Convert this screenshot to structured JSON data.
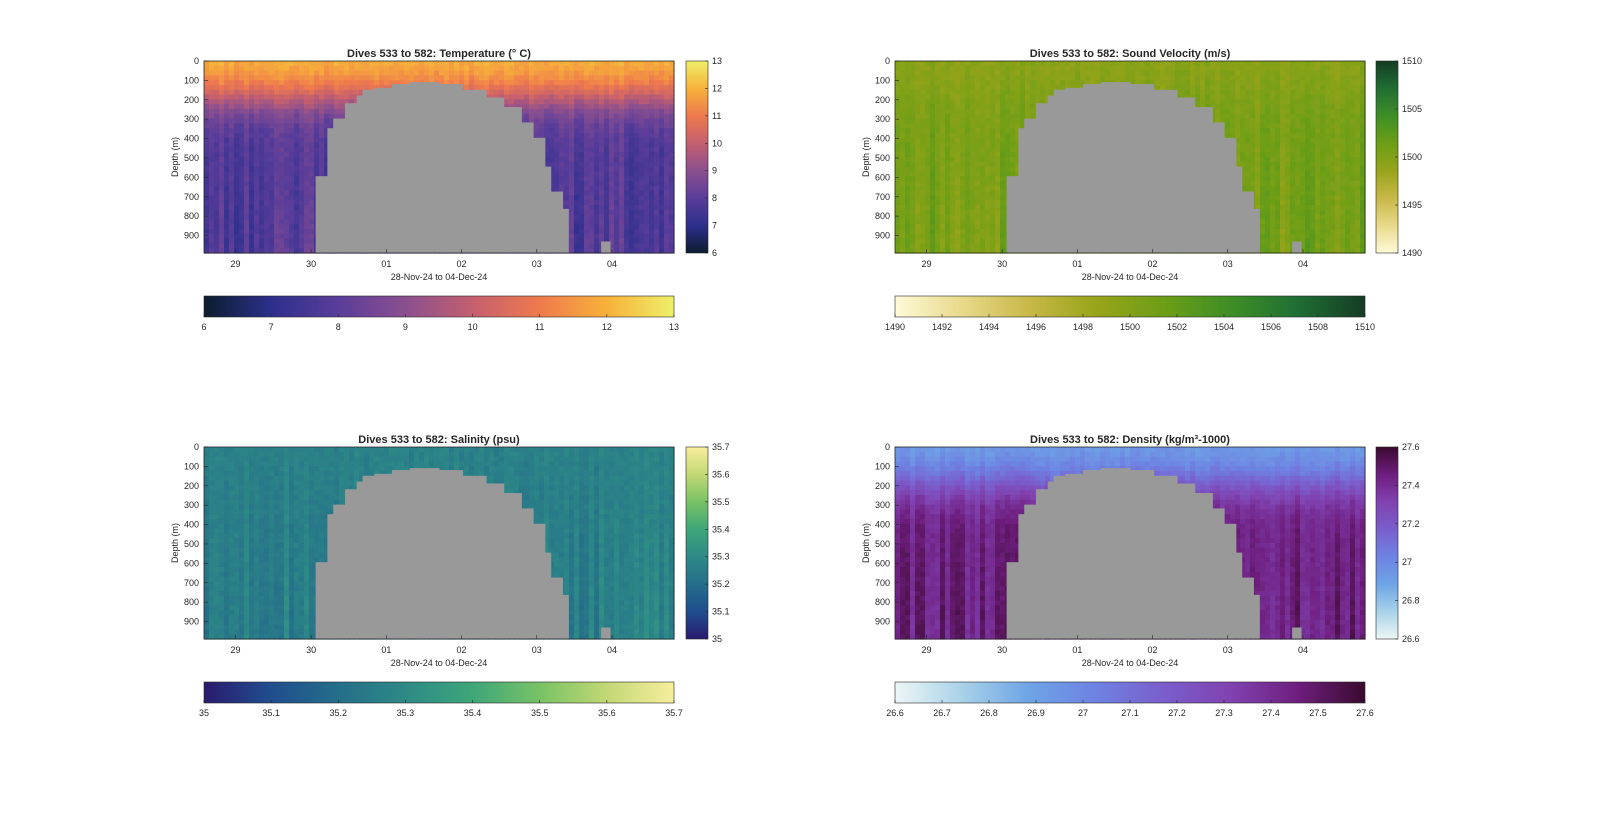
{
  "chart_data": [
    {
      "type": "heatmap",
      "id": "temperature",
      "title": "Dives 533 to 582: Temperature (° C)",
      "xlabel": "28-Nov-24 to 04-Dec-24",
      "ylabel": "Depth (m)",
      "x_ticks": [
        "29",
        "30",
        "01",
        "02",
        "03",
        "04"
      ],
      "y_ticks": [
        "0",
        "100",
        "200",
        "300",
        "400",
        "500",
        "600",
        "700",
        "800",
        "900"
      ],
      "ylim": [
        0,
        990
      ],
      "y_reversed": true,
      "colormap": [
        "#0d1d2e",
        "#2d2f8c",
        "#5a3d9a",
        "#8b4f8f",
        "#c45f6f",
        "#ef7a4d",
        "#f7b13a",
        "#eef06a"
      ],
      "clim": [
        6,
        13
      ],
      "colorbar_ticks": [
        "6",
        "7",
        "8",
        "9",
        "10",
        "11",
        "12",
        "13"
      ],
      "horizontal_colorbar_ticks": [
        "6",
        "7",
        "8",
        "9",
        "10",
        "11",
        "12",
        "13"
      ],
      "surface_value": 12.2,
      "deep_value": 7.8,
      "no_data_color": "#999999"
    },
    {
      "type": "heatmap",
      "id": "sound-velocity",
      "title": "Dives 533 to 582: Sound Velocity (m/s)",
      "xlabel": "28-Nov-24 to 04-Dec-24",
      "ylabel": "Depth (m)",
      "x_ticks": [
        "29",
        "30",
        "01",
        "02",
        "03",
        "04"
      ],
      "y_ticks": [
        "0",
        "100",
        "200",
        "300",
        "400",
        "500",
        "600",
        "700",
        "800",
        "900"
      ],
      "ylim": [
        0,
        990
      ],
      "y_reversed": true,
      "colormap": [
        "#fefad8",
        "#e8d98a",
        "#c8b848",
        "#98a41a",
        "#6c9e16",
        "#3e8e26",
        "#1f6e34",
        "#153c24"
      ],
      "clim": [
        1490,
        1510
      ],
      "colorbar_ticks": [
        "1490",
        "1495",
        "1500",
        "1505",
        "1510"
      ],
      "horizontal_colorbar_ticks": [
        "1490",
        "1492",
        "1494",
        "1496",
        "1498",
        "1500",
        "1502",
        "1504",
        "1506",
        "1508",
        "1510"
      ],
      "surface_value": 1499.5,
      "deep_value": 1500.8,
      "no_data_color": "#999999"
    },
    {
      "type": "heatmap",
      "id": "salinity",
      "title": "Dives 533 to 582: Salinity (psu)",
      "xlabel": "28-Nov-24 to 04-Dec-24",
      "ylabel": "Depth (m)",
      "x_ticks": [
        "29",
        "30",
        "01",
        "02",
        "03",
        "04"
      ],
      "y_ticks": [
        "0",
        "100",
        "200",
        "300",
        "400",
        "500",
        "600",
        "700",
        "800",
        "900"
      ],
      "ylim": [
        0,
        990
      ],
      "y_reversed": true,
      "colormap": [
        "#2a1a6e",
        "#1f4e8e",
        "#256e8a",
        "#2d8a86",
        "#3ea679",
        "#78c265",
        "#c2d874",
        "#f8ee9e"
      ],
      "clim": [
        35,
        35.7
      ],
      "colorbar_ticks": [
        "35",
        "35.1",
        "35.2",
        "35.3",
        "35.4",
        "35.5",
        "35.6",
        "35.7"
      ],
      "horizontal_colorbar_ticks": [
        "35",
        "35.1",
        "35.2",
        "35.3",
        "35.4",
        "35.5",
        "35.6",
        "35.7"
      ],
      "surface_value": 35.27,
      "deep_value": 35.26,
      "no_data_color": "#999999"
    },
    {
      "type": "heatmap",
      "id": "density",
      "title": "Dives 533 to 582: Density (kg/m³-1000)",
      "xlabel": "28-Nov-24 to 04-Dec-24",
      "ylabel": "Depth (m)",
      "x_ticks": [
        "29",
        "30",
        "01",
        "02",
        "03",
        "04"
      ],
      "y_ticks": [
        "0",
        "100",
        "200",
        "300",
        "400",
        "500",
        "600",
        "700",
        "800",
        "900"
      ],
      "ylim": [
        0,
        990
      ],
      "y_reversed": true,
      "colormap": [
        "#eef6f6",
        "#a8d2e8",
        "#6ea4e6",
        "#6e82e2",
        "#7a5ecc",
        "#8042b0",
        "#6e1e7e",
        "#3a0a2e"
      ],
      "clim": [
        26.6,
        27.6
      ],
      "colorbar_ticks": [
        "26.6",
        "26.8",
        "27",
        "27.2",
        "27.4",
        "27.6"
      ],
      "horizontal_colorbar_ticks": [
        "26.6",
        "26.7",
        "26.8",
        "26.9",
        "27",
        "27.1",
        "27.2",
        "27.3",
        "27.4",
        "27.5",
        "27.6"
      ],
      "surface_value": 26.9,
      "deep_value": 27.45,
      "no_data_color": "#999999"
    }
  ]
}
